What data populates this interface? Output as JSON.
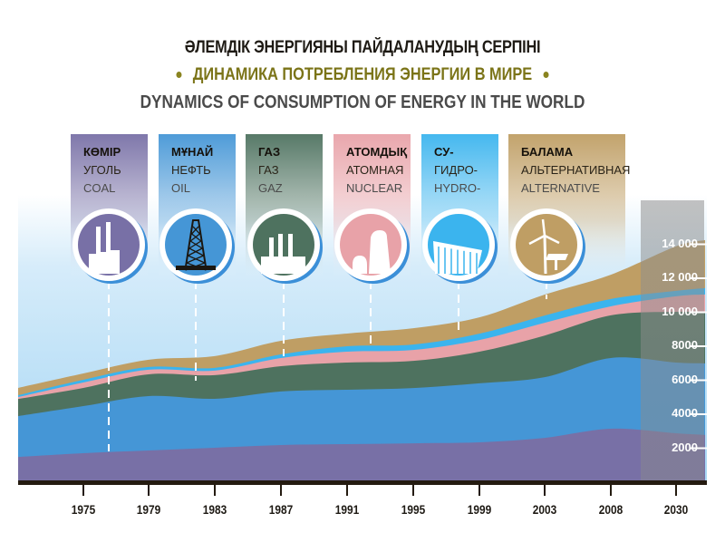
{
  "titles": {
    "kazakh": "ӘЛЕМДІК  ЭНЕРГИЯНЫ ПАЙДАЛАНУДЫҢ  СЕРПІНІ",
    "russian": "ДИНАМИКА ПОТРЕБЛЕНИЯ ЭНЕРГИИ В МИРЕ",
    "english": "DYNAMICS OF CONSUMPTION OF ENERGY IN THE WORLD"
  },
  "colors": {
    "coal": "#7870a6",
    "oil": "#4596d6",
    "gas": "#4e725f",
    "nuclear": "#e8a2a8",
    "hydro": "#3bb4ee",
    "alternative": "#bf9e64",
    "background": "#b8def6",
    "axis": "#241b10"
  },
  "legend": [
    {
      "key": "coal",
      "kk": "КӨМІР",
      "ru": "УГОЛЬ",
      "en": "COAL",
      "icon": "coal-power-plant-icon"
    },
    {
      "key": "oil",
      "kk": "МҰНАЙ",
      "ru": "НЕФТЬ",
      "en": "OIL",
      "icon": "oil-derrick-icon"
    },
    {
      "key": "gas",
      "kk": "ГАЗ",
      "ru": "ГАЗ",
      "en": "GAZ",
      "icon": "gas-plant-icon"
    },
    {
      "key": "nuclear",
      "kk": "АТОМДЫҚ",
      "ru": "АТОМНАЯ",
      "en": "NUCLEAR",
      "icon": "nuclear-cooling-tower-icon"
    },
    {
      "key": "hydro",
      "kk": "СУ-",
      "ru": "ГИДРО-",
      "en": "HYDRO-",
      "icon": "hydro-dam-icon"
    },
    {
      "key": "alternative",
      "kk": "БАЛАМА",
      "ru": "АЛЬТЕРНАТИВНАЯ",
      "en": "ALTERNATIVE",
      "icon": "wind-solar-icon"
    }
  ],
  "chart_data": {
    "type": "area",
    "stacked": true,
    "title": "DYNAMICS OF CONSUMPTION OF ENERGY IN THE WORLD",
    "xlabel": "",
    "ylabel": "",
    "categories": [
      "",
      "1975",
      "1979",
      "1983",
      "1987",
      "1991",
      "1995",
      "1999",
      "2003",
      "2008",
      "2030",
      ""
    ],
    "x_tick_labels": [
      "1975",
      "1979",
      "1983",
      "1987",
      "1991",
      "1995",
      "1999",
      "2003",
      "2008",
      "2030"
    ],
    "y_tick_labels": [
      "2000",
      "4000",
      "6000",
      "8000",
      "10 000",
      "12 000",
      "14 000"
    ],
    "y_ticks": [
      2000,
      4000,
      6000,
      8000,
      10000,
      12000,
      14000
    ],
    "ylim": [
      0,
      16000
    ],
    "grid": false,
    "legend_placement": "top",
    "forecast_region": "2030",
    "series": [
      {
        "name": "Coal",
        "key": "coal",
        "values": [
          1490,
          1710,
          1870,
          2030,
          2190,
          2240,
          2290,
          2350,
          2610,
          3150,
          2880,
          2780
        ]
      },
      {
        "name": "Oil",
        "key": "oil",
        "values": [
          2400,
          2770,
          3200,
          2880,
          3150,
          3200,
          3250,
          3470,
          3570,
          4160,
          4160,
          4210
        ]
      },
      {
        "name": "Gas",
        "key": "gas",
        "values": [
          1010,
          1070,
          1280,
          1390,
          1490,
          1600,
          1600,
          1860,
          2450,
          2510,
          2990,
          2990
        ]
      },
      {
        "name": "Nuclear",
        "key": "nuclear",
        "values": [
          110,
          320,
          270,
          270,
          480,
          640,
          640,
          690,
          750,
          530,
          910,
          1070
        ]
      },
      {
        "name": "Hydro",
        "key": "hydro",
        "values": [
          110,
          160,
          160,
          160,
          210,
          320,
          320,
          370,
          430,
          430,
          320,
          370
        ]
      },
      {
        "name": "Alternative",
        "key": "alternative",
        "values": [
          430,
          370,
          430,
          690,
          800,
          750,
          960,
          960,
          1230,
          1430,
          2620,
          2830
        ]
      }
    ]
  }
}
